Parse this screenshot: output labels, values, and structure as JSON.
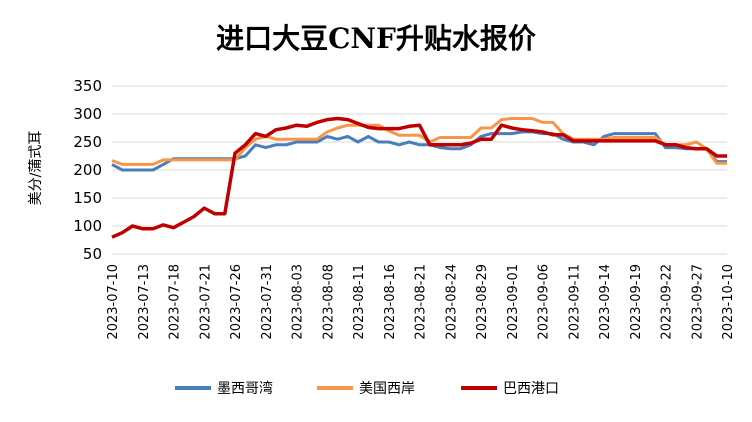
{
  "chart_data": {
    "type": "line",
    "title": "进口大豆CNF升贴水报价",
    "ylabel": "美分/蒲式耳",
    "xlabel": "",
    "ylim": [
      50,
      350
    ],
    "yticks": [
      50,
      100,
      150,
      200,
      250,
      300,
      350
    ],
    "grid": true,
    "legend_position": "bottom",
    "x": [
      "2023-07-10",
      "2023-07-11",
      "2023-07-12",
      "2023-07-13",
      "2023-07-14",
      "2023-07-17",
      "2023-07-18",
      "2023-07-19",
      "2023-07-20",
      "2023-07-21",
      "2023-07-24",
      "2023-07-25",
      "2023-07-26",
      "2023-07-27",
      "2023-07-28",
      "2023-07-31",
      "2023-08-01",
      "2023-08-02",
      "2023-08-03",
      "2023-08-04",
      "2023-08-07",
      "2023-08-08",
      "2023-08-09",
      "2023-08-10",
      "2023-08-11",
      "2023-08-14",
      "2023-08-15",
      "2023-08-16",
      "2023-08-17",
      "2023-08-18",
      "2023-08-21",
      "2023-08-22",
      "2023-08-23",
      "2023-08-24",
      "2023-08-25",
      "2023-08-28",
      "2023-08-29",
      "2023-08-30",
      "2023-08-31",
      "2023-09-01",
      "2023-09-04",
      "2023-09-05",
      "2023-09-06",
      "2023-09-07",
      "2023-09-08",
      "2023-09-11",
      "2023-09-12",
      "2023-09-13",
      "2023-09-14",
      "2023-09-15",
      "2023-09-18",
      "2023-09-19",
      "2023-09-20",
      "2023-09-21",
      "2023-09-22",
      "2023-09-25",
      "2023-09-26",
      "2023-09-27",
      "2023-09-28",
      "2023-10-09",
      "2023-10-10"
    ],
    "xtick_labels": [
      "2023-07-10",
      "2023-07-13",
      "2023-07-18",
      "2023-07-21",
      "2023-07-26",
      "2023-07-31",
      "2023-08-03",
      "2023-08-08",
      "2023-08-11",
      "2023-08-16",
      "2023-08-21",
      "2023-08-24",
      "2023-08-29",
      "2023-09-01",
      "2023-09-06",
      "2023-09-11",
      "2023-09-14",
      "2023-09-19",
      "2023-09-22",
      "2023-09-27",
      "2023-10-10"
    ],
    "series": [
      {
        "name": "墨西哥湾",
        "color": "#4a7ebb",
        "values": [
          210,
          200,
          200,
          200,
          200,
          210,
          220,
          220,
          220,
          220,
          220,
          220,
          220,
          225,
          245,
          240,
          245,
          245,
          250,
          250,
          250,
          260,
          255,
          260,
          250,
          260,
          250,
          250,
          245,
          250,
          245,
          245,
          240,
          238,
          238,
          245,
          260,
          265,
          265,
          265,
          268,
          268,
          265,
          265,
          255,
          250,
          250,
          245,
          260,
          265,
          265,
          265,
          265,
          265,
          240,
          240,
          238,
          238,
          238,
          215,
          215
        ]
      },
      {
        "name": "美国西岸",
        "color": "#f79646",
        "values": [
          217,
          210,
          210,
          210,
          210,
          218,
          218,
          218,
          218,
          218,
          218,
          218,
          218,
          240,
          255,
          260,
          255,
          255,
          255,
          255,
          255,
          268,
          275,
          280,
          280,
          280,
          280,
          270,
          262,
          262,
          262,
          250,
          258,
          258,
          258,
          258,
          275,
          275,
          290,
          292,
          292,
          292,
          285,
          285,
          265,
          255,
          255,
          255,
          255,
          258,
          258,
          258,
          258,
          258,
          245,
          245,
          245,
          250,
          238,
          212,
          212
        ]
      },
      {
        "name": "巴西港口",
        "color": "#c00000",
        "values": [
          80,
          88,
          100,
          95,
          95,
          102,
          97,
          107,
          117,
          132,
          122,
          122,
          230,
          245,
          265,
          260,
          272,
          275,
          280,
          278,
          285,
          290,
          292,
          290,
          283,
          276,
          274,
          274,
          274,
          278,
          280,
          245,
          245,
          245,
          245,
          248,
          255,
          255,
          280,
          275,
          272,
          270,
          268,
          263,
          263,
          252,
          252,
          252,
          252,
          252,
          252,
          252,
          252,
          252,
          245,
          245,
          240,
          238,
          238,
          225,
          225
        ]
      }
    ]
  }
}
